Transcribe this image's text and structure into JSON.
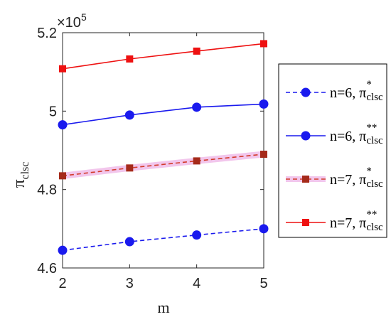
{
  "chart_data": {
    "type": "line",
    "xlabel": "m",
    "ylabel_main": "π",
    "ylabel_sub": "clsc",
    "exponent_prefix": "×10",
    "exponent_power": "5",
    "x": [
      2,
      3,
      4,
      5
    ],
    "x_ticks": [
      "2",
      "3",
      "4",
      "5"
    ],
    "xlim": [
      2,
      5
    ],
    "y_ticks": [
      "4.6",
      "4.8",
      "5",
      "5.2"
    ],
    "y_tick_values": [
      4.6,
      4.8,
      5.0,
      5.2
    ],
    "ylim": [
      4.6,
      5.2
    ],
    "grid": false,
    "legend_position": "right",
    "series": [
      {
        "name": "n=6, π",
        "superscript": "*",
        "subscript": "clsc",
        "values": [
          4.645,
          4.667,
          4.684,
          4.7
        ],
        "color": "#1a1aee",
        "dash": "dashed",
        "marker": "circle"
      },
      {
        "name": "n=6, π",
        "superscript": "**",
        "subscript": "clsc",
        "values": [
          4.965,
          4.99,
          5.01,
          5.018
        ],
        "color": "#1a1aee",
        "dash": "solid",
        "marker": "circle"
      },
      {
        "name": "n=7, π",
        "superscript": "*",
        "subscript": "clsc",
        "values": [
          4.835,
          4.855,
          4.873,
          4.89
        ],
        "color": "#d23b2a",
        "marker_color": "#a52a1a",
        "dash": "dashed",
        "marker": "square",
        "highlight": "#f2c6ec"
      },
      {
        "name": "n=7, π",
        "superscript": "**",
        "subscript": "clsc",
        "values": [
          5.108,
          5.133,
          5.153,
          5.172
        ],
        "color": "#ee1111",
        "dash": "solid",
        "marker": "square"
      }
    ]
  }
}
